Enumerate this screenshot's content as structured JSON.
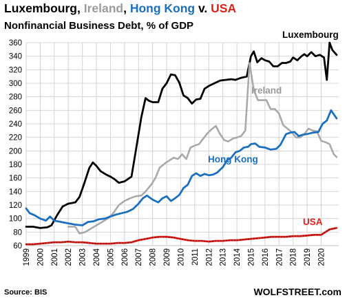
{
  "chart_data": {
    "type": "line",
    "title_parts": [
      {
        "text": "Luxembourg",
        "color": "#000000"
      },
      {
        "text": ", ",
        "color": "#000000"
      },
      {
        "text": "Ireland",
        "color": "#9b9b9b"
      },
      {
        "text": ", ",
        "color": "#000000"
      },
      {
        "text": "Hong Kong",
        "color": "#1a6fc0"
      },
      {
        "text": " v. ",
        "color": "#000000"
      },
      {
        "text": "USA",
        "color": "#e0201b"
      }
    ],
    "subtitle": "Nonfinancial Business Debt, % of GDP",
    "source": "Source: BIS",
    "brand": "WOLFSTREET.com",
    "ylim": [
      60,
      360
    ],
    "yticks": [
      60,
      80,
      100,
      120,
      140,
      160,
      180,
      200,
      220,
      240,
      260,
      280,
      300,
      320,
      340,
      360
    ],
    "xlim": [
      1999,
      2021.25
    ],
    "xticks": [
      "1999",
      "2000",
      "2001",
      "2002",
      "2003",
      "2004",
      "2005",
      "2006",
      "2007",
      "2008",
      "2009",
      "2010",
      "2011",
      "2012",
      "2013",
      "2014",
      "2015",
      "2016",
      "2017",
      "2018",
      "2019",
      "2020"
    ],
    "grid": true,
    "series": [
      {
        "name": "Luxembourg",
        "color": "#000000",
        "points": [
          [
            1999,
            88
          ],
          [
            1999.5,
            88
          ],
          [
            2000,
            86
          ],
          [
            2000.5,
            87
          ],
          [
            2000.8,
            90
          ],
          [
            2001.2,
            105
          ],
          [
            2001.6,
            118
          ],
          [
            2002,
            122
          ],
          [
            2002.5,
            124
          ],
          [
            2002.8,
            132
          ],
          [
            2003.1,
            150
          ],
          [
            2003.5,
            175
          ],
          [
            2003.75,
            183
          ],
          [
            2004,
            178
          ],
          [
            2004.3,
            170
          ],
          [
            2004.7,
            165
          ],
          [
            2005,
            162
          ],
          [
            2005.3,
            158
          ],
          [
            2005.6,
            153
          ],
          [
            2006,
            155
          ],
          [
            2006.5,
            162
          ],
          [
            2006.8,
            200
          ],
          [
            2007.2,
            250
          ],
          [
            2007.5,
            278
          ],
          [
            2007.75,
            274
          ],
          [
            2008,
            272
          ],
          [
            2008.4,
            272
          ],
          [
            2008.7,
            292
          ],
          [
            2009,
            300
          ],
          [
            2009.3,
            313
          ],
          [
            2009.6,
            312
          ],
          [
            2009.9,
            301
          ],
          [
            2010.2,
            282
          ],
          [
            2010.5,
            278
          ],
          [
            2010.8,
            270
          ],
          [
            2011.1,
            276
          ],
          [
            2011.4,
            277
          ],
          [
            2011.7,
            292
          ],
          [
            2012,
            296
          ],
          [
            2012.4,
            300
          ],
          [
            2012.8,
            304
          ],
          [
            2013.2,
            305
          ],
          [
            2013.6,
            306
          ],
          [
            2013.9,
            305
          ],
          [
            2014.3,
            308
          ],
          [
            2014.7,
            310
          ],
          [
            2015,
            340
          ],
          [
            2015.2,
            347
          ],
          [
            2015.45,
            331
          ],
          [
            2015.75,
            337
          ],
          [
            2016,
            334
          ],
          [
            2016.3,
            332
          ],
          [
            2016.6,
            325
          ],
          [
            2016.9,
            325
          ],
          [
            2017.2,
            330
          ],
          [
            2017.5,
            330
          ],
          [
            2017.8,
            332
          ],
          [
            2018,
            338
          ],
          [
            2018.3,
            334
          ],
          [
            2018.6,
            340
          ],
          [
            2018.8,
            343
          ],
          [
            2019,
            340
          ],
          [
            2019.3,
            346
          ],
          [
            2019.6,
            340
          ],
          [
            2019.9,
            342
          ],
          [
            2020.2,
            338
          ],
          [
            2020.4,
            305
          ],
          [
            2020.6,
            360
          ],
          [
            2020.8,
            349
          ],
          [
            2021.1,
            342
          ]
        ]
      },
      {
        "name": "Ireland",
        "color": "#a9a9a9",
        "points": [
          [
            2002,
            88
          ],
          [
            2002.5,
            88
          ],
          [
            2002.8,
            78
          ],
          [
            2003.2,
            80
          ],
          [
            2003.6,
            85
          ],
          [
            2004,
            90
          ],
          [
            2004.4,
            95
          ],
          [
            2004.8,
            100
          ],
          [
            2005.2,
            108
          ],
          [
            2005.6,
            120
          ],
          [
            2006,
            126
          ],
          [
            2006.4,
            130
          ],
          [
            2006.8,
            133
          ],
          [
            2007.2,
            134
          ],
          [
            2007.5,
            140
          ],
          [
            2007.9,
            150
          ],
          [
            2008.2,
            160
          ],
          [
            2008.5,
            175
          ],
          [
            2008.9,
            182
          ],
          [
            2009.2,
            186
          ],
          [
            2009.5,
            190
          ],
          [
            2009.8,
            188
          ],
          [
            2010.1,
            195
          ],
          [
            2010.4,
            188
          ],
          [
            2010.7,
            205
          ],
          [
            2011,
            208
          ],
          [
            2011.3,
            210
          ],
          [
            2011.6,
            218
          ],
          [
            2011.9,
            226
          ],
          [
            2012.2,
            232
          ],
          [
            2012.5,
            237
          ],
          [
            2012.8,
            225
          ],
          [
            2013.1,
            216
          ],
          [
            2013.4,
            214
          ],
          [
            2013.7,
            218
          ],
          [
            2014,
            220
          ],
          [
            2014.3,
            222
          ],
          [
            2014.6,
            230
          ],
          [
            2014.9,
            330
          ],
          [
            2015.2,
            290
          ],
          [
            2015.5,
            275
          ],
          [
            2015.8,
            275
          ],
          [
            2016.1,
            275
          ],
          [
            2016.4,
            262
          ],
          [
            2016.7,
            262
          ],
          [
            2017,
            255
          ],
          [
            2017.3,
            238
          ],
          [
            2017.6,
            233
          ],
          [
            2017.9,
            228
          ],
          [
            2018.2,
            220
          ],
          [
            2018.5,
            220
          ],
          [
            2018.8,
            225
          ],
          [
            2019.1,
            233
          ],
          [
            2019.4,
            230
          ],
          [
            2019.7,
            229
          ],
          [
            2020,
            215
          ],
          [
            2020.3,
            213
          ],
          [
            2020.6,
            210
          ],
          [
            2020.9,
            195
          ],
          [
            2021.1,
            191
          ]
        ]
      },
      {
        "name": "Hong Kong",
        "color": "#1a6fc0",
        "points": [
          [
            1999,
            115
          ],
          [
            1999.25,
            108
          ],
          [
            1999.6,
            105
          ],
          [
            2000,
            100
          ],
          [
            2000.4,
            97
          ],
          [
            2000.7,
            103
          ],
          [
            2001,
            97
          ],
          [
            2001.5,
            95
          ],
          [
            2002,
            93
          ],
          [
            2002.5,
            91
          ],
          [
            2003,
            90
          ],
          [
            2003.4,
            95
          ],
          [
            2003.8,
            96
          ],
          [
            2004.2,
            99
          ],
          [
            2004.6,
            100
          ],
          [
            2005,
            103
          ],
          [
            2005.4,
            106
          ],
          [
            2005.8,
            108
          ],
          [
            2006.2,
            110
          ],
          [
            2006.6,
            114
          ],
          [
            2007,
            122
          ],
          [
            2007.3,
            130
          ],
          [
            2007.6,
            134
          ],
          [
            2008,
            128
          ],
          [
            2008.4,
            124
          ],
          [
            2008.7,
            130
          ],
          [
            2009,
            133
          ],
          [
            2009.3,
            126
          ],
          [
            2009.6,
            130
          ],
          [
            2009.9,
            135
          ],
          [
            2010.2,
            145
          ],
          [
            2010.5,
            150
          ],
          [
            2010.8,
            163
          ],
          [
            2011.1,
            167
          ],
          [
            2011.4,
            163
          ],
          [
            2011.7,
            166
          ],
          [
            2012,
            164
          ],
          [
            2012.3,
            165
          ],
          [
            2012.6,
            168
          ],
          [
            2013,
            176
          ],
          [
            2013.3,
            186
          ],
          [
            2013.6,
            190
          ],
          [
            2013.9,
            198
          ],
          [
            2014.2,
            200
          ],
          [
            2014.5,
            205
          ],
          [
            2014.8,
            206
          ],
          [
            2015,
            210
          ],
          [
            2015.3,
            211
          ],
          [
            2015.6,
            206
          ],
          [
            2016,
            205
          ],
          [
            2016.4,
            202
          ],
          [
            2016.8,
            203
          ],
          [
            2017.1,
            209
          ],
          [
            2017.5,
            225
          ],
          [
            2017.8,
            227
          ],
          [
            2018.1,
            228
          ],
          [
            2018.4,
            222
          ],
          [
            2018.7,
            224
          ],
          [
            2019,
            225
          ],
          [
            2019.4,
            227
          ],
          [
            2019.8,
            228
          ],
          [
            2020.1,
            240
          ],
          [
            2020.4,
            245
          ],
          [
            2020.7,
            260
          ],
          [
            2021.1,
            248
          ]
        ]
      },
      {
        "name": "USA",
        "color": "#e0201b",
        "points": [
          [
            1999,
            62
          ],
          [
            1999.5,
            62
          ],
          [
            2000,
            63
          ],
          [
            2000.5,
            64
          ],
          [
            2001,
            65
          ],
          [
            2001.5,
            65
          ],
          [
            2002,
            66
          ],
          [
            2002.5,
            65
          ],
          [
            2003,
            65
          ],
          [
            2003.5,
            64
          ],
          [
            2004,
            63
          ],
          [
            2004.5,
            63
          ],
          [
            2005,
            63
          ],
          [
            2005.5,
            64
          ],
          [
            2006,
            64
          ],
          [
            2006.5,
            65
          ],
          [
            2007,
            68
          ],
          [
            2007.5,
            70
          ],
          [
            2008,
            72
          ],
          [
            2008.5,
            73
          ],
          [
            2009,
            73
          ],
          [
            2009.5,
            72
          ],
          [
            2010,
            70
          ],
          [
            2010.5,
            68
          ],
          [
            2011,
            67
          ],
          [
            2011.5,
            67
          ],
          [
            2012,
            66
          ],
          [
            2012.5,
            67
          ],
          [
            2013,
            67
          ],
          [
            2013.5,
            68
          ],
          [
            2014,
            68
          ],
          [
            2014.5,
            69
          ],
          [
            2015,
            70
          ],
          [
            2015.5,
            71
          ],
          [
            2016,
            72
          ],
          [
            2016.5,
            73
          ],
          [
            2017,
            73
          ],
          [
            2017.5,
            73
          ],
          [
            2018,
            74
          ],
          [
            2018.5,
            74
          ],
          [
            2019,
            75
          ],
          [
            2019.5,
            76
          ],
          [
            2020,
            76
          ],
          [
            2020.3,
            80
          ],
          [
            2020.6,
            84
          ],
          [
            2021.1,
            86
          ]
        ]
      }
    ],
    "annotations": [
      {
        "text": "Luxembourg",
        "series": "Luxembourg"
      },
      {
        "text": "Ireland",
        "series": "Ireland"
      },
      {
        "text": "Hong Kong",
        "series": "Hong Kong"
      },
      {
        "text": "USA",
        "series": "USA"
      }
    ]
  }
}
